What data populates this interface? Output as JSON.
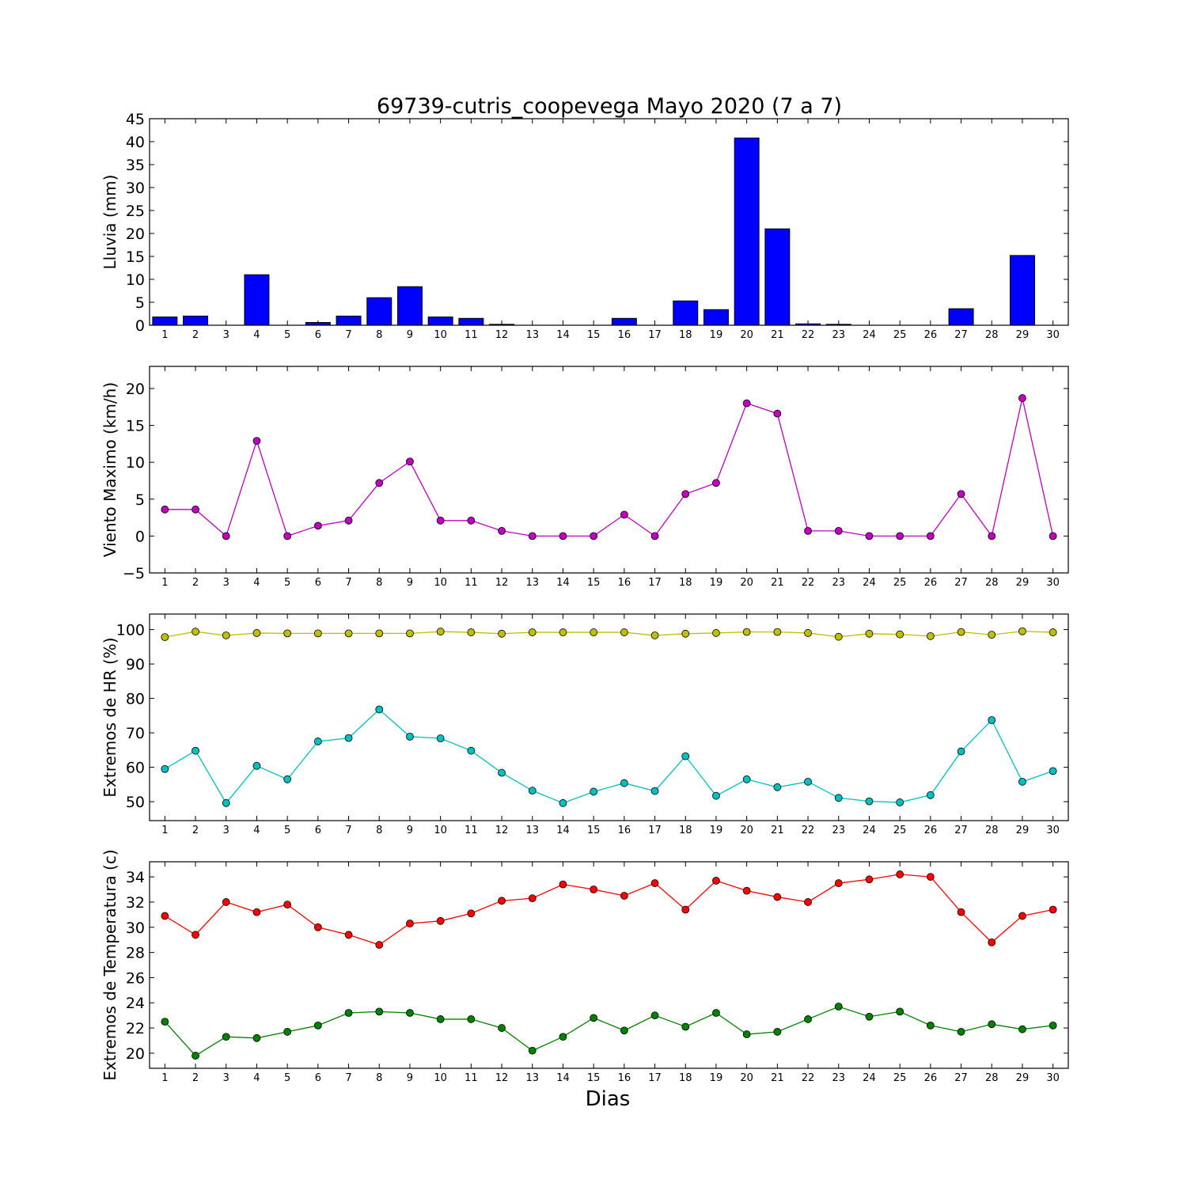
{
  "figure": {
    "title": "69739-cutris_coopevega Mayo 2020  (7 a 7)",
    "xlabel": "Dias"
  },
  "chart_data": [
    {
      "type": "bar",
      "ylabel": "Lluvia (mm)",
      "ylim": [
        0,
        45
      ],
      "yticks": [
        0,
        5,
        10,
        15,
        20,
        25,
        30,
        35,
        40,
        45
      ],
      "x": [
        1,
        2,
        3,
        4,
        5,
        6,
        7,
        8,
        9,
        10,
        11,
        12,
        13,
        14,
        15,
        16,
        17,
        18,
        19,
        20,
        21,
        22,
        23,
        24,
        25,
        26,
        27,
        28,
        29,
        30
      ],
      "values": [
        1.8,
        2.0,
        0,
        11.0,
        0,
        0.6,
        2.0,
        6.0,
        8.4,
        1.8,
        1.5,
        0.2,
        0,
        0,
        0,
        1.5,
        0,
        5.3,
        3.4,
        40.8,
        21.0,
        0.3,
        0.2,
        0,
        0,
        0,
        3.6,
        0,
        15.2,
        0
      ],
      "color": "#0000ff",
      "grid": false
    },
    {
      "type": "line",
      "ylabel": "Viento Maximo (km/h)",
      "ylim": [
        -5,
        23
      ],
      "yticks": [
        -5,
        0,
        5,
        10,
        15,
        20
      ],
      "x": [
        1,
        2,
        3,
        4,
        5,
        6,
        7,
        8,
        9,
        10,
        11,
        12,
        13,
        14,
        15,
        16,
        17,
        18,
        19,
        20,
        21,
        22,
        23,
        24,
        25,
        26,
        27,
        28,
        29,
        30
      ],
      "series": [
        {
          "values": [
            3.6,
            3.6,
            0,
            12.9,
            0,
            1.4,
            2.1,
            7.2,
            10.1,
            2.1,
            2.1,
            0.7,
            0,
            0,
            0,
            2.9,
            0,
            5.7,
            7.2,
            18.0,
            16.6,
            0.7,
            0.7,
            0,
            0,
            0,
            5.7,
            0,
            18.7,
            0
          ],
          "color": "#bf00bf"
        }
      ],
      "grid": false
    },
    {
      "type": "line",
      "ylabel": "Extremos de HR (%)",
      "ylim": [
        44.5,
        104.5
      ],
      "yticks": [
        50,
        60,
        70,
        80,
        90,
        100
      ],
      "x": [
        1,
        2,
        3,
        4,
        5,
        6,
        7,
        8,
        9,
        10,
        11,
        12,
        13,
        14,
        15,
        16,
        17,
        18,
        19,
        20,
        21,
        22,
        23,
        24,
        25,
        26,
        27,
        28,
        29,
        30
      ],
      "series": [
        {
          "values": [
            97.8,
            99.4,
            98.3,
            99.0,
            98.9,
            98.9,
            98.9,
            98.9,
            98.9,
            99.4,
            99.2,
            98.8,
            99.2,
            99.2,
            99.2,
            99.2,
            98.3,
            98.8,
            99.0,
            99.3,
            99.3,
            99.0,
            97.9,
            98.8,
            98.6,
            98.1,
            99.3,
            98.5,
            99.5,
            99.2
          ],
          "color": "#bfbf00"
        },
        {
          "values": [
            59.5,
            64.8,
            49.6,
            60.4,
            56.5,
            67.5,
            68.5,
            76.8,
            68.9,
            68.4,
            64.8,
            58.4,
            53.2,
            49.6,
            52.9,
            55.4,
            53.1,
            63.2,
            51.7,
            56.5,
            54.2,
            55.8,
            51.1,
            50.1,
            49.8,
            51.9,
            64.6,
            73.7,
            55.8,
            58.9
          ],
          "color": "#00bfbf"
        }
      ],
      "grid": false
    },
    {
      "type": "line",
      "ylabel": "Extremos de Temperatura (c)",
      "ylim": [
        18.8,
        35.2
      ],
      "yticks": [
        20,
        22,
        24,
        26,
        28,
        30,
        32,
        34
      ],
      "x": [
        1,
        2,
        3,
        4,
        5,
        6,
        7,
        8,
        9,
        10,
        11,
        12,
        13,
        14,
        15,
        16,
        17,
        18,
        19,
        20,
        21,
        22,
        23,
        24,
        25,
        26,
        27,
        28,
        29,
        30
      ],
      "series": [
        {
          "values": [
            30.9,
            29.4,
            32.0,
            31.2,
            31.8,
            30.0,
            29.4,
            28.6,
            30.3,
            30.5,
            31.1,
            32.1,
            32.3,
            33.4,
            33.0,
            32.5,
            33.5,
            31.4,
            33.7,
            32.9,
            32.4,
            32.0,
            33.5,
            33.8,
            34.2,
            34.0,
            31.2,
            28.8,
            30.9,
            31.4
          ],
          "color": "#ff0000"
        },
        {
          "values": [
            22.5,
            19.8,
            21.3,
            21.2,
            21.7,
            22.2,
            23.2,
            23.3,
            23.2,
            22.7,
            22.7,
            22.0,
            20.2,
            21.3,
            22.8,
            21.8,
            23.0,
            22.1,
            23.2,
            21.5,
            21.7,
            22.7,
            23.7,
            22.9,
            23.3,
            22.2,
            21.7,
            22.3,
            21.9,
            22.2
          ],
          "color": "#008000"
        }
      ],
      "grid": false
    }
  ]
}
